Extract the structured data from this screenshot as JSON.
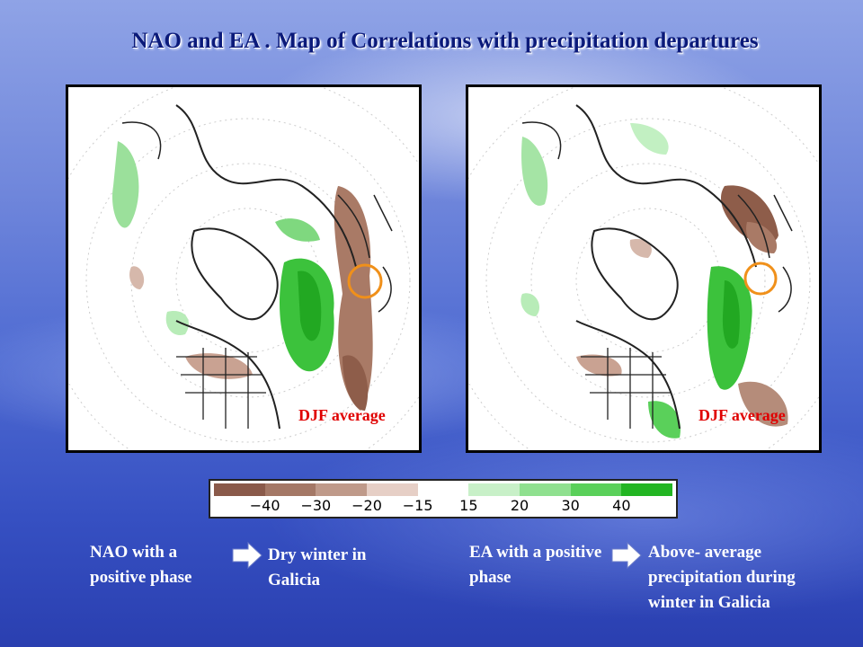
{
  "title": "NAO and EA . Map of Correlations with precipitation departures",
  "maps": [
    {
      "label": "DJF average"
    },
    {
      "label": "DJF average"
    }
  ],
  "legend": {
    "colors": [
      "#8a5a4a",
      "#a47866",
      "#bf9a8a",
      "#e6cfc6",
      "#ffffff",
      "#c8f0c8",
      "#8fe08f",
      "#5ad05a",
      "#22b522"
    ],
    "ticks": [
      "−40",
      "−30",
      "−20",
      "−15",
      "15",
      "20",
      "30",
      "40"
    ]
  },
  "captions": {
    "nao_phase": "NAO with a positive phase",
    "nao_effect": "Dry winter in Galicia",
    "ea_phase": "EA with a positive phase",
    "ea_effect": "Above- average precipitation during winter in Galicia"
  },
  "colors": {
    "title": "#0b1a7a",
    "map_label": "#e00000",
    "marker": "#f0901a"
  }
}
